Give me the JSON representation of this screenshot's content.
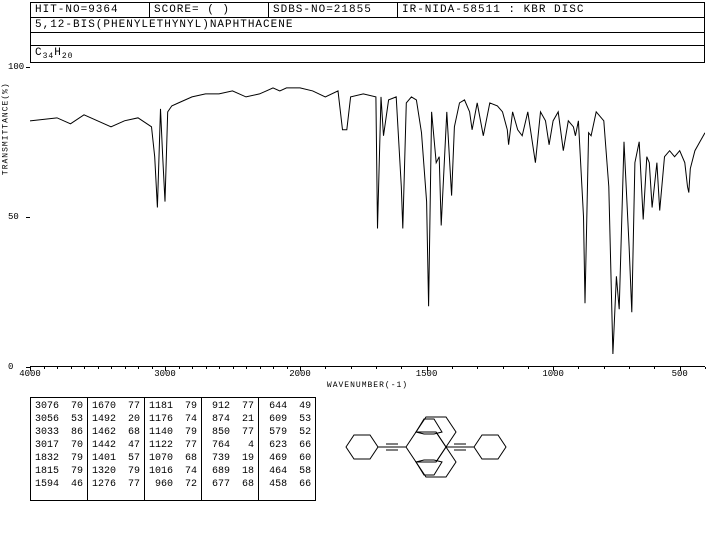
{
  "header": {
    "hit_no": "HIT-NO=9364",
    "score": "SCORE=  (  )",
    "sdbs_no": "SDBS-NO=21855",
    "method": "IR-NIDA-58511 : KBR DISC"
  },
  "compound_name": "5,12-BIS(PHENYLETHYNYL)NAPHTHACENE",
  "formula_html": "C<sub>34</sub>H<sub>20</sub>",
  "chart": {
    "ylabel": "TRANSMITTANCE(%)",
    "xlabel": "WAVENUMBER(-1)",
    "ylim": [
      0,
      100
    ],
    "xlim": [
      4000,
      400
    ],
    "yticks": [
      0,
      50,
      100
    ],
    "xticks": [
      4000,
      3000,
      2000,
      1500,
      1000,
      500
    ],
    "line_color": "#000000",
    "background_color": "#ffffff",
    "spectrum": [
      [
        4000,
        82
      ],
      [
        3800,
        83
      ],
      [
        3700,
        81
      ],
      [
        3600,
        84
      ],
      [
        3500,
        82
      ],
      [
        3400,
        80
      ],
      [
        3300,
        82
      ],
      [
        3200,
        83
      ],
      [
        3100,
        80
      ],
      [
        3076,
        70
      ],
      [
        3056,
        53
      ],
      [
        3033,
        86
      ],
      [
        3017,
        70
      ],
      [
        3000,
        55
      ],
      [
        2980,
        85
      ],
      [
        2950,
        87
      ],
      [
        2900,
        88
      ],
      [
        2800,
        90
      ],
      [
        2700,
        91
      ],
      [
        2600,
        91
      ],
      [
        2500,
        92
      ],
      [
        2400,
        90
      ],
      [
        2300,
        91
      ],
      [
        2250,
        92
      ],
      [
        2200,
        93
      ],
      [
        2150,
        92
      ],
      [
        2100,
        93
      ],
      [
        2050,
        93
      ],
      [
        2000,
        93
      ],
      [
        1950,
        92
      ],
      [
        1900,
        90
      ],
      [
        1850,
        92
      ],
      [
        1832,
        79
      ],
      [
        1815,
        79
      ],
      [
        1800,
        90
      ],
      [
        1750,
        91
      ],
      [
        1700,
        90
      ],
      [
        1694,
        46
      ],
      [
        1680,
        90
      ],
      [
        1670,
        77
      ],
      [
        1650,
        89
      ],
      [
        1620,
        90
      ],
      [
        1600,
        60
      ],
      [
        1594,
        46
      ],
      [
        1580,
        88
      ],
      [
        1560,
        90
      ],
      [
        1540,
        89
      ],
      [
        1520,
        78
      ],
      [
        1500,
        55
      ],
      [
        1492,
        20
      ],
      [
        1480,
        85
      ],
      [
        1462,
        68
      ],
      [
        1450,
        70
      ],
      [
        1442,
        47
      ],
      [
        1420,
        85
      ],
      [
        1401,
        57
      ],
      [
        1390,
        80
      ],
      [
        1370,
        88
      ],
      [
        1350,
        89
      ],
      [
        1330,
        85
      ],
      [
        1320,
        79
      ],
      [
        1300,
        88
      ],
      [
        1276,
        77
      ],
      [
        1250,
        88
      ],
      [
        1220,
        87
      ],
      [
        1200,
        85
      ],
      [
        1181,
        79
      ],
      [
        1176,
        74
      ],
      [
        1160,
        85
      ],
      [
        1140,
        79
      ],
      [
        1122,
        77
      ],
      [
        1100,
        85
      ],
      [
        1070,
        68
      ],
      [
        1050,
        85
      ],
      [
        1030,
        82
      ],
      [
        1016,
        74
      ],
      [
        1000,
        82
      ],
      [
        980,
        85
      ],
      [
        960,
        72
      ],
      [
        940,
        82
      ],
      [
        920,
        80
      ],
      [
        912,
        77
      ],
      [
        900,
        82
      ],
      [
        880,
        50
      ],
      [
        874,
        21
      ],
      [
        860,
        78
      ],
      [
        850,
        77
      ],
      [
        830,
        85
      ],
      [
        800,
        82
      ],
      [
        780,
        60
      ],
      [
        764,
        4
      ],
      [
        750,
        30
      ],
      [
        739,
        19
      ],
      [
        720,
        75
      ],
      [
        700,
        40
      ],
      [
        689,
        18
      ],
      [
        677,
        68
      ],
      [
        660,
        75
      ],
      [
        644,
        49
      ],
      [
        630,
        70
      ],
      [
        620,
        68
      ],
      [
        609,
        53
      ],
      [
        590,
        68
      ],
      [
        579,
        52
      ],
      [
        560,
        70
      ],
      [
        540,
        72
      ],
      [
        520,
        70
      ],
      [
        500,
        72
      ],
      [
        480,
        68
      ],
      [
        469,
        60
      ],
      [
        464,
        58
      ],
      [
        458,
        66
      ],
      [
        440,
        72
      ],
      [
        420,
        75
      ],
      [
        400,
        78
      ]
    ]
  },
  "peak_table": {
    "columns": [
      [
        [
          3076,
          70
        ],
        [
          3056,
          53
        ],
        [
          3033,
          86
        ],
        [
          3017,
          70
        ],
        [
          1832,
          79
        ],
        [
          1815,
          79
        ],
        [
          1594,
          46
        ]
      ],
      [
        [
          1670,
          77
        ],
        [
          1492,
          20
        ],
        [
          1462,
          68
        ],
        [
          1442,
          47
        ],
        [
          1401,
          57
        ],
        [
          1320,
          79
        ],
        [
          1276,
          77
        ]
      ],
      [
        [
          1181,
          79
        ],
        [
          1176,
          74
        ],
        [
          1140,
          79
        ],
        [
          1122,
          77
        ],
        [
          1070,
          68
        ],
        [
          1016,
          74
        ],
        [
          960,
          72
        ]
      ],
      [
        [
          912,
          77
        ],
        [
          874,
          21
        ],
        [
          850,
          77
        ],
        [
          764,
          4
        ],
        [
          739,
          19
        ],
        [
          689,
          18
        ],
        [
          677,
          68
        ]
      ],
      [
        [
          644,
          49
        ],
        [
          609,
          53
        ],
        [
          579,
          52
        ],
        [
          623,
          66
        ],
        [
          469,
          60
        ],
        [
          464,
          58
        ],
        [
          458,
          66
        ]
      ]
    ]
  }
}
